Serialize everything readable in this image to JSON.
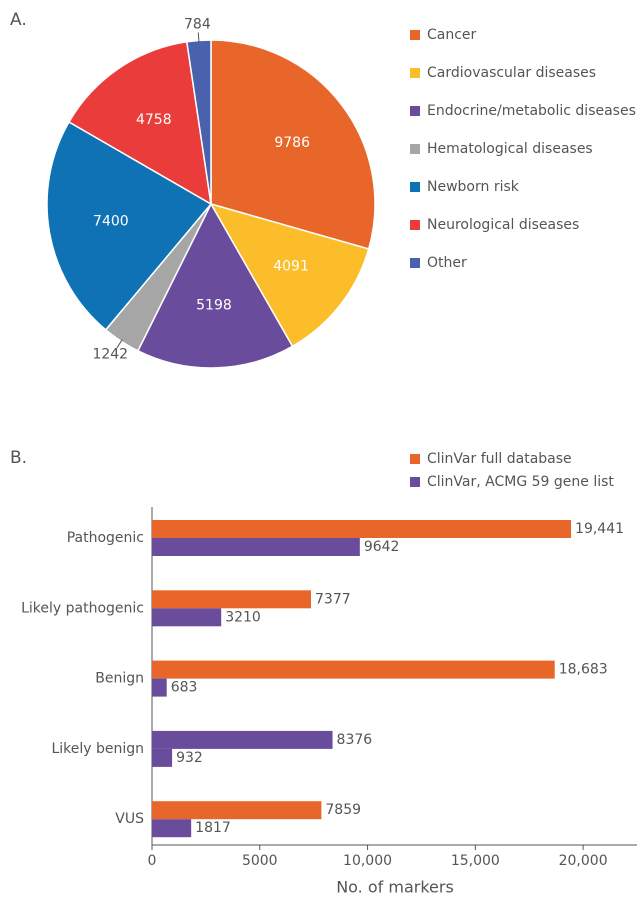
{
  "chart_data": [
    {
      "type": "pie",
      "panel_label": "A.",
      "categories": [
        "Cancer",
        "Cardiovascular diseases",
        "Endocrine/metabolic diseases",
        "Hematological diseases",
        "Newborn risk",
        "Neurological diseases",
        "Other"
      ],
      "values": [
        9786,
        4091,
        5198,
        1242,
        7400,
        4758,
        784
      ],
      "colors": [
        "#e8662a",
        "#fbbd2a",
        "#6a4c9c",
        "#a6a6a6",
        "#0e72b5",
        "#ea3c3b",
        "#4a61ae"
      ],
      "legend": "right"
    },
    {
      "type": "hbar",
      "panel_label": "B.",
      "categories": [
        "Pathogenic",
        "Likely pathogenic",
        "Benign",
        "Likely benign",
        "VUS"
      ],
      "series": [
        {
          "name": "ClinVar full database",
          "color": "#e8662a",
          "colors": [
            "#e8662a",
            "#e8662a",
            "#e8662a",
            "#6a4c9c",
            "#e8662a"
          ],
          "values": [
            19441,
            7377,
            18683,
            8376,
            7859
          ],
          "value_labels": [
            "19,441",
            "7377",
            "18,683",
            "8376",
            "7859"
          ]
        },
        {
          "name": "ClinVar, ACMG 59 gene list",
          "color": "#6a4c9c",
          "values": [
            9642,
            3210,
            683,
            932,
            1817
          ]
        }
      ],
      "x_label": "No. of markers",
      "xlim": [
        0,
        22500
      ],
      "xticks": [
        0,
        5000,
        {
          "value": 10000,
          "label": "10,000"
        },
        {
          "value": 15000,
          "label": "15,000"
        },
        {
          "value": 20000,
          "label": "20,000"
        }
      ],
      "legend": "top-right"
    }
  ]
}
